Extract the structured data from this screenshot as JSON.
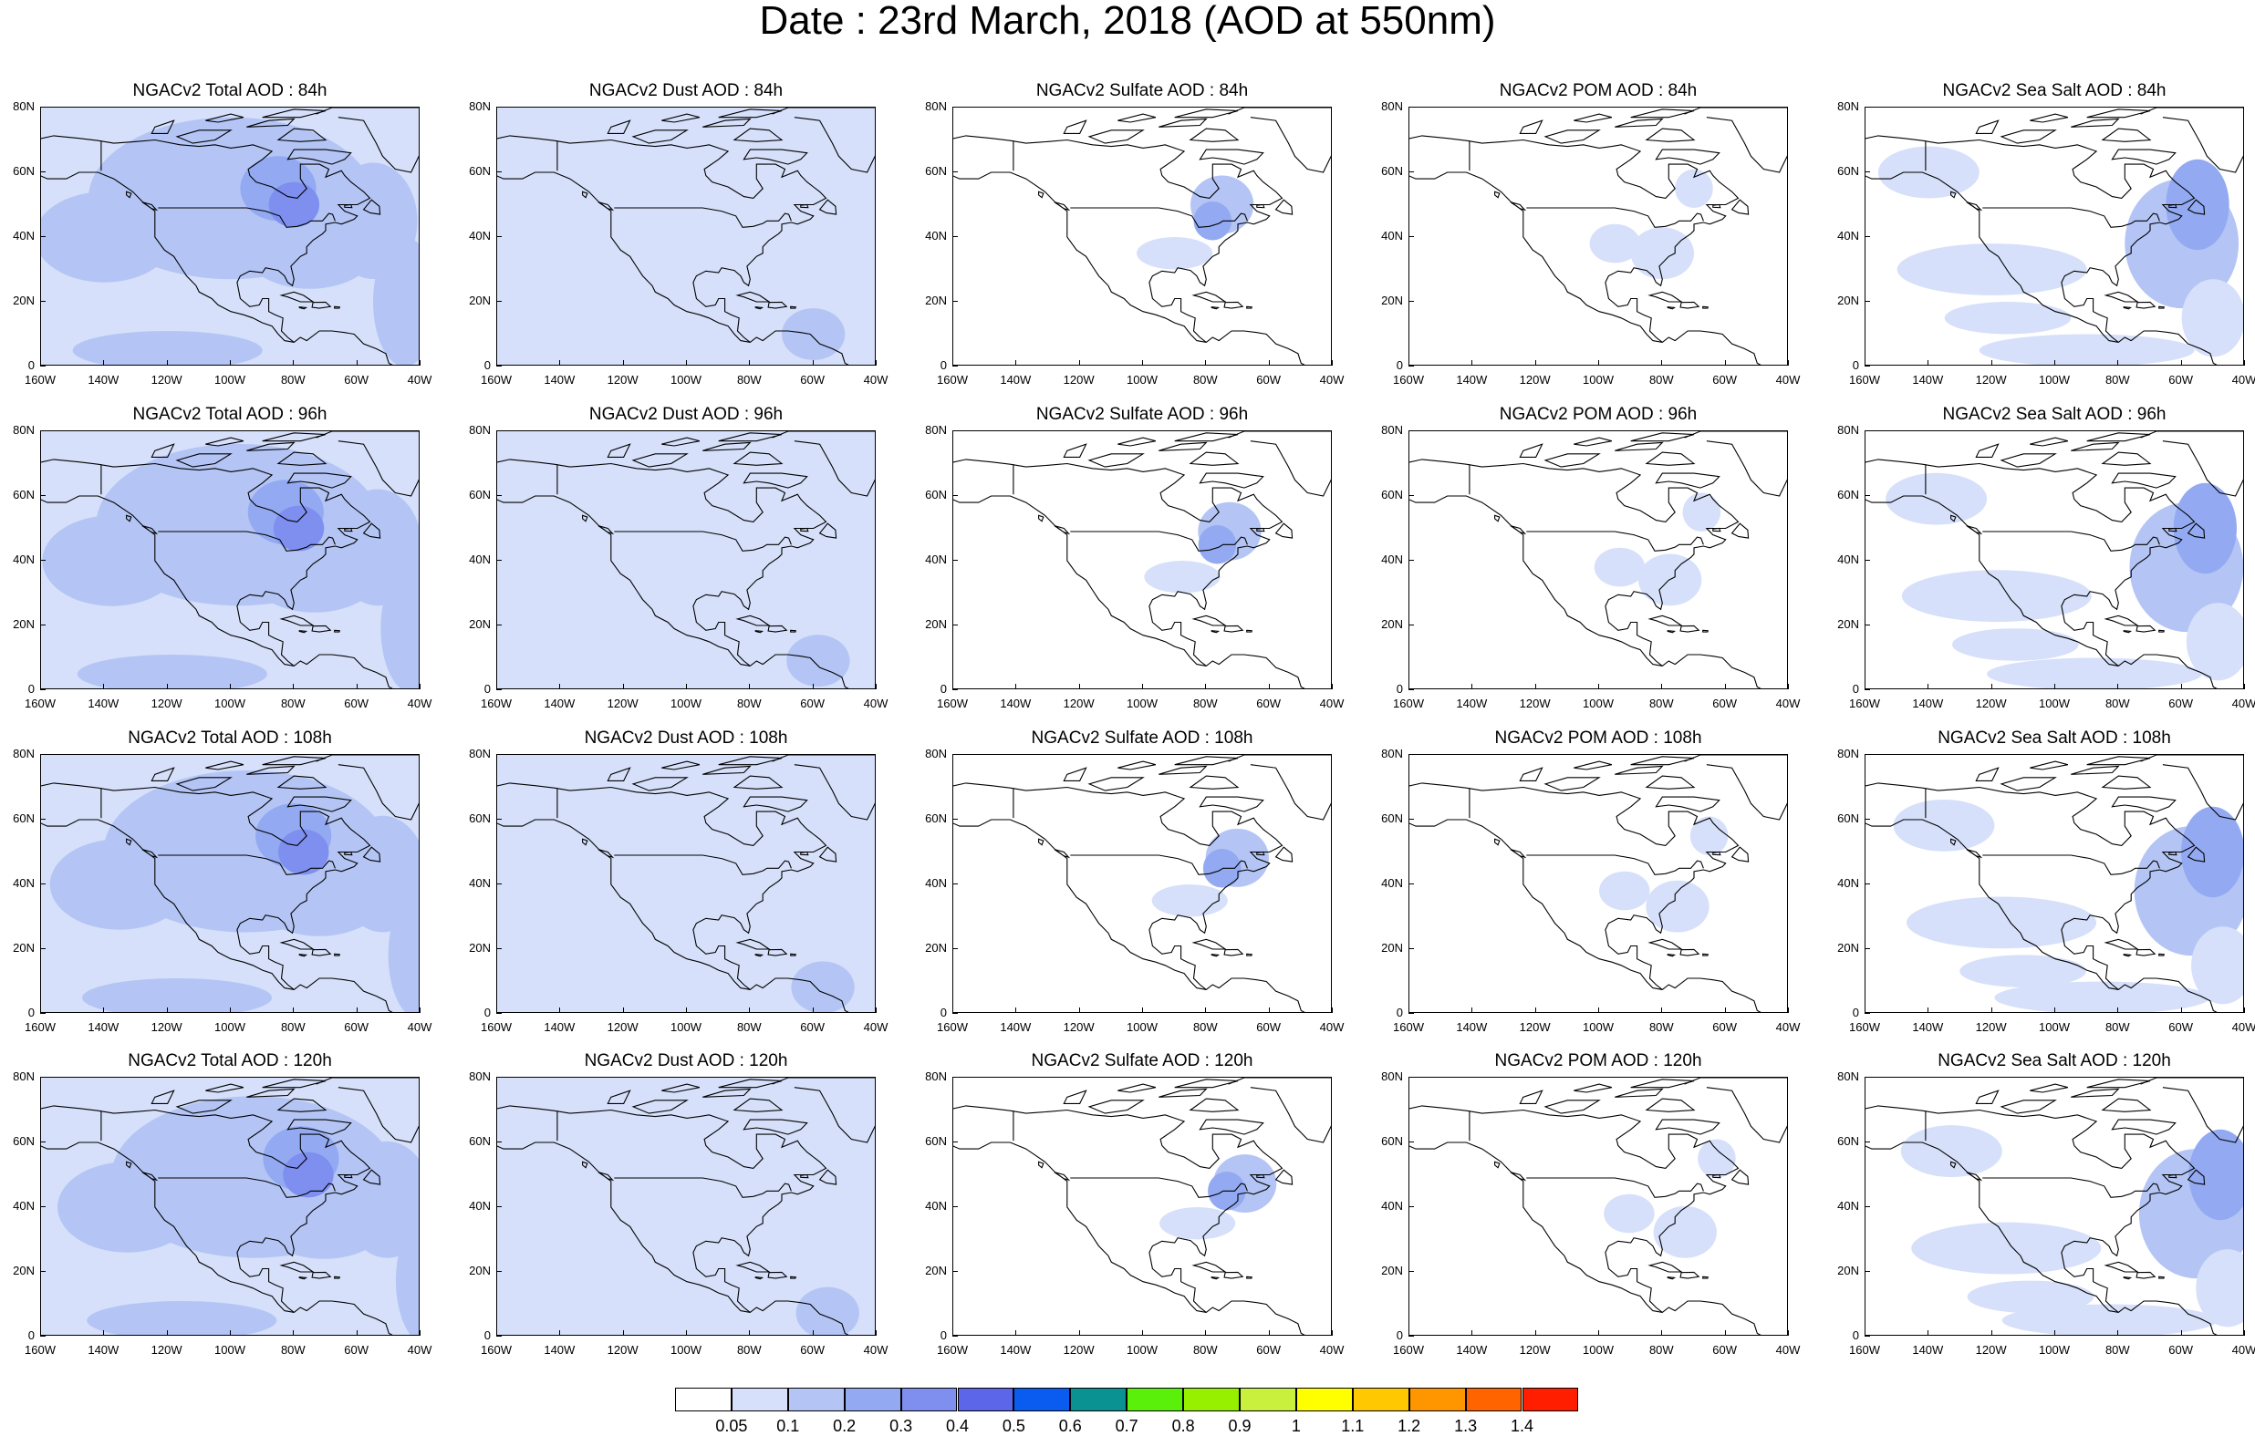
{
  "title": "Date : 23rd March, 2018 (AOD at 550nm)",
  "panels": [
    {
      "title": "NGACv2 Total AOD : 84h",
      "species": "total",
      "hour": 84
    },
    {
      "title": "NGACv2 Dust AOD : 84h",
      "species": "dust",
      "hour": 84
    },
    {
      "title": "NGACv2 Sulfate AOD : 84h",
      "species": "sulfate",
      "hour": 84
    },
    {
      "title": "NGACv2 POM AOD : 84h",
      "species": "pom",
      "hour": 84
    },
    {
      "title": "NGACv2 Sea Salt AOD : 84h",
      "species": "seasalt",
      "hour": 84
    },
    {
      "title": "NGACv2 Total AOD : 96h",
      "species": "total",
      "hour": 96
    },
    {
      "title": "NGACv2 Dust AOD : 96h",
      "species": "dust",
      "hour": 96
    },
    {
      "title": "NGACv2 Sulfate AOD : 96h",
      "species": "sulfate",
      "hour": 96
    },
    {
      "title": "NGACv2 POM AOD : 96h",
      "species": "pom",
      "hour": 96
    },
    {
      "title": "NGACv2 Sea Salt AOD : 96h",
      "species": "seasalt",
      "hour": 96
    },
    {
      "title": "NGACv2 Total AOD : 108h",
      "species": "total",
      "hour": 108
    },
    {
      "title": "NGACv2 Dust AOD : 108h",
      "species": "dust",
      "hour": 108
    },
    {
      "title": "NGACv2 Sulfate AOD : 108h",
      "species": "sulfate",
      "hour": 108
    },
    {
      "title": "NGACv2 POM AOD : 108h",
      "species": "pom",
      "hour": 108
    },
    {
      "title": "NGACv2 Sea Salt AOD : 108h",
      "species": "seasalt",
      "hour": 108
    },
    {
      "title": "NGACv2 Total AOD : 120h",
      "species": "total",
      "hour": 120
    },
    {
      "title": "NGACv2 Dust AOD : 120h",
      "species": "dust",
      "hour": 120
    },
    {
      "title": "NGACv2 Sulfate AOD : 120h",
      "species": "sulfate",
      "hour": 120
    },
    {
      "title": "NGACv2 POM AOD : 120h",
      "species": "pom",
      "hour": 120
    },
    {
      "title": "NGACv2 Sea Salt  AOD : 120h",
      "species": "seasalt",
      "hour": 120
    }
  ],
  "lat_labels": [
    "80N",
    "60N",
    "40N",
    "20N",
    "0"
  ],
  "lon_labels": [
    "160W",
    "140W",
    "120W",
    "100W",
    "80W",
    "60W",
    "40W"
  ],
  "colorbar": {
    "labels": [
      "0.05",
      "0.1",
      "0.2",
      "0.3",
      "0.4",
      "0.5",
      "0.6",
      "0.7",
      "0.8",
      "0.9",
      "1",
      "1.1",
      "1.2",
      "1.3",
      "1.4"
    ],
    "colors": [
      "#ffffff",
      "#d6e0fa",
      "#b4c5f5",
      "#93aaf2",
      "#7f8ff0",
      "#5b66e8",
      "#0a5cf0",
      "#0a9191",
      "#5af00a",
      "#96f000",
      "#c8f03c",
      "#ffff00",
      "#ffc800",
      "#ff9600",
      "#ff6400",
      "#ff1e00"
    ]
  }
}
